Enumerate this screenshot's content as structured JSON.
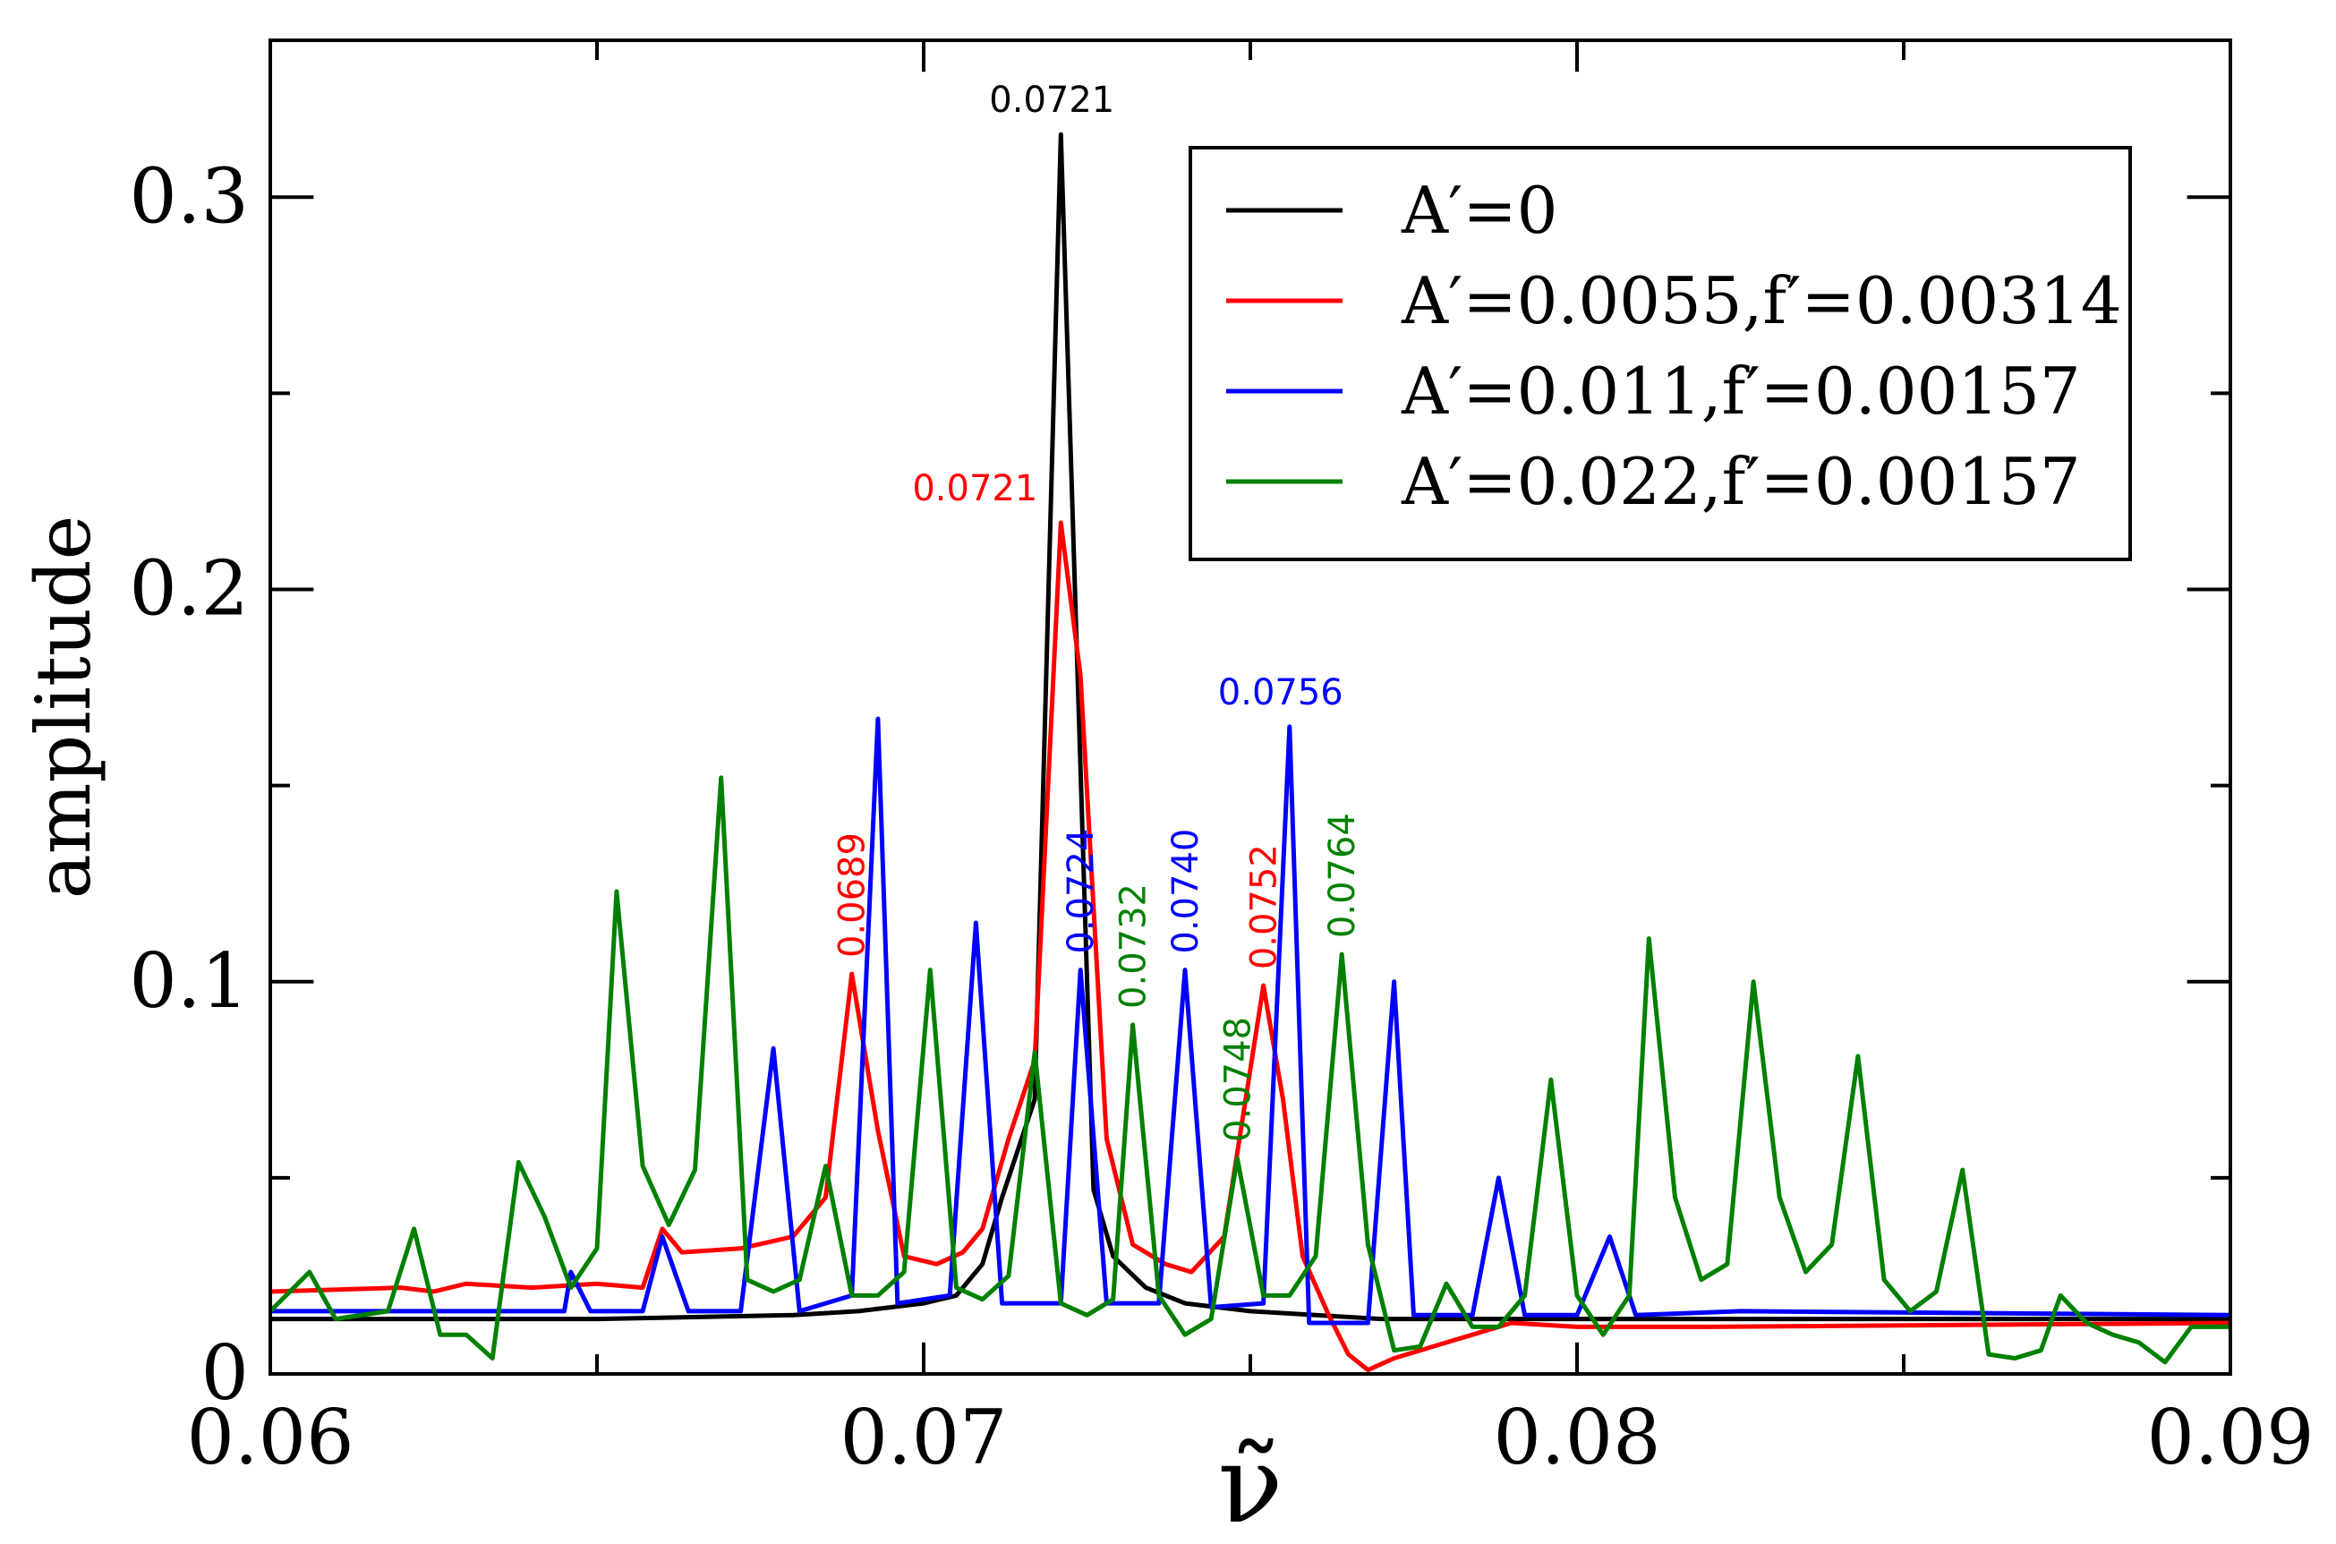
{
  "chart_data": {
    "type": "line",
    "title": "",
    "xlabel": "ν̃",
    "ylabel": "amplitude",
    "xlim": [
      0.06,
      0.09
    ],
    "ylim": [
      0,
      0.34
    ],
    "x_ticks": [
      {
        "value": 0.06,
        "label": "0.06"
      },
      {
        "value": 0.07,
        "label": "0.07"
      },
      {
        "value": 0.08,
        "label": "0.08"
      },
      {
        "value": 0.09,
        "label": "0.09"
      }
    ],
    "y_ticks": [
      {
        "value": 0,
        "label": "0"
      },
      {
        "value": 0.1,
        "label": "0.1"
      },
      {
        "value": 0.2,
        "label": "0.2"
      },
      {
        "value": 0.3,
        "label": "0.3"
      }
    ],
    "legend_position": "top-right",
    "series": [
      {
        "name": "A′=0",
        "color": "#000000",
        "points": [
          [
            0.06,
            0.014
          ],
          [
            0.065,
            0.014
          ],
          [
            0.068,
            0.015
          ],
          [
            0.069,
            0.016
          ],
          [
            0.0695,
            0.017
          ],
          [
            0.07,
            0.018
          ],
          [
            0.0705,
            0.02
          ],
          [
            0.0709,
            0.028
          ],
          [
            0.0712,
            0.045
          ],
          [
            0.0717,
            0.07
          ],
          [
            0.0721,
            0.316
          ],
          [
            0.0726,
            0.047
          ],
          [
            0.0729,
            0.03
          ],
          [
            0.0734,
            0.022
          ],
          [
            0.074,
            0.018
          ],
          [
            0.075,
            0.016
          ],
          [
            0.076,
            0.015
          ],
          [
            0.077,
            0.014
          ],
          [
            0.08,
            0.014
          ],
          [
            0.09,
            0.014
          ]
        ]
      },
      {
        "name": "A′=0.0055,f′=0.00314",
        "color": "#ff0000",
        "points": [
          [
            0.06,
            0.021
          ],
          [
            0.062,
            0.022
          ],
          [
            0.0625,
            0.021
          ],
          [
            0.063,
            0.023
          ],
          [
            0.064,
            0.022
          ],
          [
            0.065,
            0.023
          ],
          [
            0.0657,
            0.022
          ],
          [
            0.066,
            0.037
          ],
          [
            0.0663,
            0.031
          ],
          [
            0.0672,
            0.032
          ],
          [
            0.068,
            0.035
          ],
          [
            0.0685,
            0.045
          ],
          [
            0.0689,
            0.102
          ],
          [
            0.0693,
            0.062
          ],
          [
            0.0697,
            0.03
          ],
          [
            0.0702,
            0.028
          ],
          [
            0.0706,
            0.031
          ],
          [
            0.0709,
            0.037
          ],
          [
            0.0713,
            0.06
          ],
          [
            0.0717,
            0.08
          ],
          [
            0.0721,
            0.217
          ],
          [
            0.0724,
            0.178
          ],
          [
            0.0728,
            0.06
          ],
          [
            0.0732,
            0.033
          ],
          [
            0.0737,
            0.028
          ],
          [
            0.0741,
            0.026
          ],
          [
            0.0746,
            0.035
          ],
          [
            0.0752,
            0.099
          ],
          [
            0.0755,
            0.07
          ],
          [
            0.0758,
            0.03
          ],
          [
            0.0762,
            0.015
          ],
          [
            0.0765,
            0.005
          ],
          [
            0.0768,
            0.001
          ],
          [
            0.0772,
            0.004
          ],
          [
            0.078,
            0.008
          ],
          [
            0.079,
            0.013
          ],
          [
            0.08,
            0.012
          ],
          [
            0.082,
            0.012
          ],
          [
            0.09,
            0.013
          ]
        ]
      },
      {
        "name": "A′=0.011,f′=0.00157",
        "color": "#0000ff",
        "points": [
          [
            0.06,
            0.016
          ],
          [
            0.063,
            0.016
          ],
          [
            0.0645,
            0.016
          ],
          [
            0.0646,
            0.026
          ],
          [
            0.0649,
            0.016
          ],
          [
            0.0657,
            0.016
          ],
          [
            0.066,
            0.035
          ],
          [
            0.0664,
            0.016
          ],
          [
            0.0672,
            0.016
          ],
          [
            0.0677,
            0.083
          ],
          [
            0.0681,
            0.016
          ],
          [
            0.0689,
            0.02
          ],
          [
            0.0693,
            0.167
          ],
          [
            0.0696,
            0.018
          ],
          [
            0.0704,
            0.02
          ],
          [
            0.0708,
            0.115
          ],
          [
            0.0712,
            0.018
          ],
          [
            0.0721,
            0.018
          ],
          [
            0.0724,
            0.103
          ],
          [
            0.0728,
            0.018
          ],
          [
            0.0736,
            0.018
          ],
          [
            0.074,
            0.103
          ],
          [
            0.0744,
            0.017
          ],
          [
            0.0752,
            0.018
          ],
          [
            0.0756,
            0.165
          ],
          [
            0.0759,
            0.013
          ],
          [
            0.0768,
            0.013
          ],
          [
            0.0772,
            0.1
          ],
          [
            0.0775,
            0.015
          ],
          [
            0.0784,
            0.015
          ],
          [
            0.0788,
            0.05
          ],
          [
            0.0792,
            0.015
          ],
          [
            0.08,
            0.015
          ],
          [
            0.0805,
            0.035
          ],
          [
            0.0809,
            0.015
          ],
          [
            0.0825,
            0.016
          ],
          [
            0.09,
            0.015
          ]
        ]
      },
      {
        "name": "A′=0.022,f′=0.00157",
        "color": "#008000",
        "points": [
          [
            0.06,
            0.016
          ],
          [
            0.0606,
            0.026
          ],
          [
            0.061,
            0.014
          ],
          [
            0.0618,
            0.016
          ],
          [
            0.0622,
            0.037
          ],
          [
            0.0626,
            0.01
          ],
          [
            0.063,
            0.01
          ],
          [
            0.0634,
            0.004
          ],
          [
            0.0638,
            0.054
          ],
          [
            0.0642,
            0.04
          ],
          [
            0.0646,
            0.022
          ],
          [
            0.065,
            0.032
          ],
          [
            0.0653,
            0.123
          ],
          [
            0.0657,
            0.053
          ],
          [
            0.0661,
            0.038
          ],
          [
            0.0665,
            0.052
          ],
          [
            0.0669,
            0.152
          ],
          [
            0.0673,
            0.024
          ],
          [
            0.0677,
            0.021
          ],
          [
            0.0681,
            0.024
          ],
          [
            0.0685,
            0.053
          ],
          [
            0.0689,
            0.02
          ],
          [
            0.0693,
            0.02
          ],
          [
            0.0697,
            0.026
          ],
          [
            0.0701,
            0.103
          ],
          [
            0.0705,
            0.022
          ],
          [
            0.0709,
            0.019
          ],
          [
            0.0713,
            0.025
          ],
          [
            0.0717,
            0.082
          ],
          [
            0.0721,
            0.018
          ],
          [
            0.0725,
            0.015
          ],
          [
            0.0729,
            0.019
          ],
          [
            0.0732,
            0.089
          ],
          [
            0.0736,
            0.02
          ],
          [
            0.074,
            0.01
          ],
          [
            0.0744,
            0.014
          ],
          [
            0.0748,
            0.055
          ],
          [
            0.0752,
            0.02
          ],
          [
            0.0756,
            0.02
          ],
          [
            0.076,
            0.03
          ],
          [
            0.0764,
            0.107
          ],
          [
            0.0768,
            0.033
          ],
          [
            0.0772,
            0.006
          ],
          [
            0.0776,
            0.007
          ],
          [
            0.078,
            0.023
          ],
          [
            0.0784,
            0.012
          ],
          [
            0.0788,
            0.012
          ],
          [
            0.0792,
            0.02
          ],
          [
            0.0796,
            0.075
          ],
          [
            0.08,
            0.02
          ],
          [
            0.0804,
            0.01
          ],
          [
            0.0808,
            0.02
          ],
          [
            0.0811,
            0.111
          ],
          [
            0.0815,
            0.045
          ],
          [
            0.0819,
            0.024
          ],
          [
            0.0823,
            0.028
          ],
          [
            0.0827,
            0.1
          ],
          [
            0.0831,
            0.045
          ],
          [
            0.0835,
            0.026
          ],
          [
            0.0839,
            0.033
          ],
          [
            0.0843,
            0.081
          ],
          [
            0.0847,
            0.024
          ],
          [
            0.0851,
            0.016
          ],
          [
            0.0855,
            0.021
          ],
          [
            0.0859,
            0.052
          ],
          [
            0.0863,
            0.005
          ],
          [
            0.0867,
            0.004
          ],
          [
            0.0871,
            0.006
          ],
          [
            0.0874,
            0.02
          ],
          [
            0.0878,
            0.013
          ],
          [
            0.0882,
            0.01
          ],
          [
            0.0886,
            0.008
          ],
          [
            0.089,
            0.003
          ],
          [
            0.0894,
            0.012
          ],
          [
            0.09,
            0.012
          ]
        ]
      }
    ],
    "annotations": [
      {
        "text": "0.0721",
        "x": 0.0721,
        "y": 0.316,
        "color": "#000000",
        "rotate": false
      },
      {
        "text": "0.0721",
        "x": 0.0721,
        "y": 0.217,
        "color": "#ff0000",
        "rotate": false,
        "anchor": "end"
      },
      {
        "text": "0.0756",
        "x": 0.0756,
        "y": 0.165,
        "color": "#0000ff",
        "rotate": false
      },
      {
        "text": "0.0689",
        "x": 0.0689,
        "y": 0.102,
        "color": "#ff0000",
        "rotate": true
      },
      {
        "text": "0.0724",
        "x": 0.0724,
        "y": 0.103,
        "color": "#0000ff",
        "rotate": true
      },
      {
        "text": "0.0732",
        "x": 0.0732,
        "y": 0.089,
        "color": "#008000",
        "rotate": true
      },
      {
        "text": "0.0740",
        "x": 0.074,
        "y": 0.103,
        "color": "#0000ff",
        "rotate": true
      },
      {
        "text": "0.0748",
        "x": 0.0748,
        "y": 0.055,
        "color": "#008000",
        "rotate": true
      },
      {
        "text": "0.0752",
        "x": 0.0752,
        "y": 0.099,
        "color": "#ff0000",
        "rotate": true
      },
      {
        "text": "0.0764",
        "x": 0.0764,
        "y": 0.107,
        "color": "#008000",
        "rotate": true
      }
    ]
  }
}
